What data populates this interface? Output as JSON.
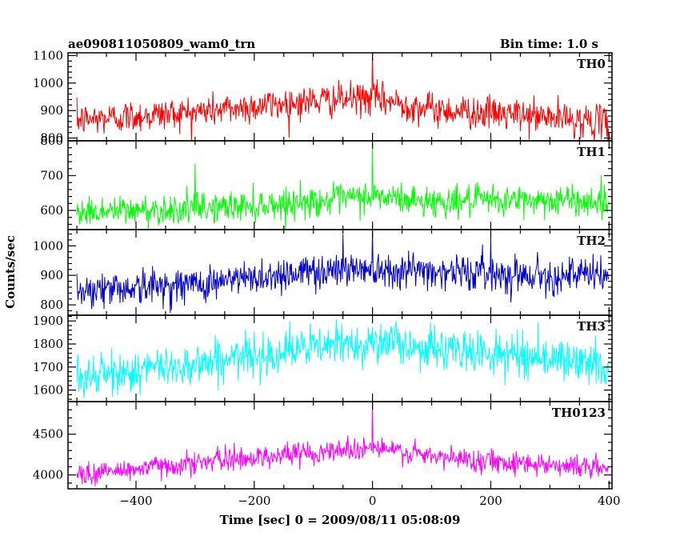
{
  "chart_data": {
    "type": "line",
    "title": "ae090811050809_wam0_trn",
    "subtitle": "Bin time: 1.0 s",
    "xlabel": "Time [sec] 0 = 2009/08/11 05:08:09",
    "ylabel": "Counts/sec",
    "xlim": [
      -515,
      405
    ],
    "x_ticks": [
      -400,
      -200,
      0,
      200,
      400
    ],
    "x_range": [
      -500,
      399
    ],
    "bin_time": 1.0,
    "grid": false,
    "panels": [
      {
        "name": "TH0",
        "color": "#ff0000",
        "ylim": [
          790,
          1110
        ],
        "y_ticks": [
          800,
          900,
          1000,
          1100
        ],
        "trend_x": [
          -500,
          -300,
          -100,
          0,
          100,
          300,
          399
        ],
        "trend_y": [
          865,
          895,
          935,
          945,
          905,
          875,
          855
        ],
        "noise_sd": 30,
        "spikes": [
          {
            "x": 0,
            "y": 1110
          }
        ]
      },
      {
        "name": "TH1",
        "color": "#00ff00",
        "ylim": [
          545,
          800
        ],
        "y_ticks": [
          600,
          700,
          800
        ],
        "trend_x": [
          -500,
          -300,
          -100,
          0,
          100,
          300,
          399
        ],
        "trend_y": [
          595,
          605,
          625,
          640,
          625,
          630,
          625
        ],
        "noise_sd": 22,
        "spikes": [
          {
            "x": 0,
            "y": 800
          },
          {
            "x": -300,
            "y": 735
          }
        ]
      },
      {
        "name": "TH2",
        "color": "#0000d0",
        "ylim": [
          765,
          1055
        ],
        "y_ticks": [
          800,
          900,
          1000
        ],
        "trend_x": [
          -500,
          -300,
          -100,
          0,
          100,
          300,
          399
        ],
        "trend_y": [
          850,
          870,
          915,
          925,
          915,
          900,
          900
        ],
        "noise_sd": 30,
        "spikes": [
          {
            "x": 0,
            "y": 1055
          },
          {
            "x": -50,
            "y": 1040
          },
          {
            "x": 200,
            "y": 1035
          }
        ]
      },
      {
        "name": "TH3",
        "color": "#00ffff",
        "ylim": [
          1550,
          1925
        ],
        "y_ticks": [
          1600,
          1700,
          1800,
          1900
        ],
        "trend_x": [
          -500,
          -300,
          -100,
          0,
          100,
          300,
          399
        ],
        "trend_y": [
          1650,
          1715,
          1785,
          1810,
          1780,
          1740,
          1700
        ],
        "noise_sd": 45,
        "spikes": [
          {
            "x": 280,
            "y": 1895
          },
          {
            "x": 40,
            "y": 1900
          }
        ]
      },
      {
        "name": "TH0123",
        "color": "#ff00ff",
        "ylim": [
          3830,
          4900
        ],
        "y_ticks": [
          4000,
          4500
        ],
        "trend_x": [
          -500,
          -300,
          -100,
          0,
          100,
          300,
          399
        ],
        "trend_y": [
          4000,
          4150,
          4280,
          4340,
          4220,
          4130,
          4080
        ],
        "noise_sd": 70,
        "spikes": [
          {
            "x": 0,
            "y": 4900
          }
        ]
      }
    ]
  }
}
